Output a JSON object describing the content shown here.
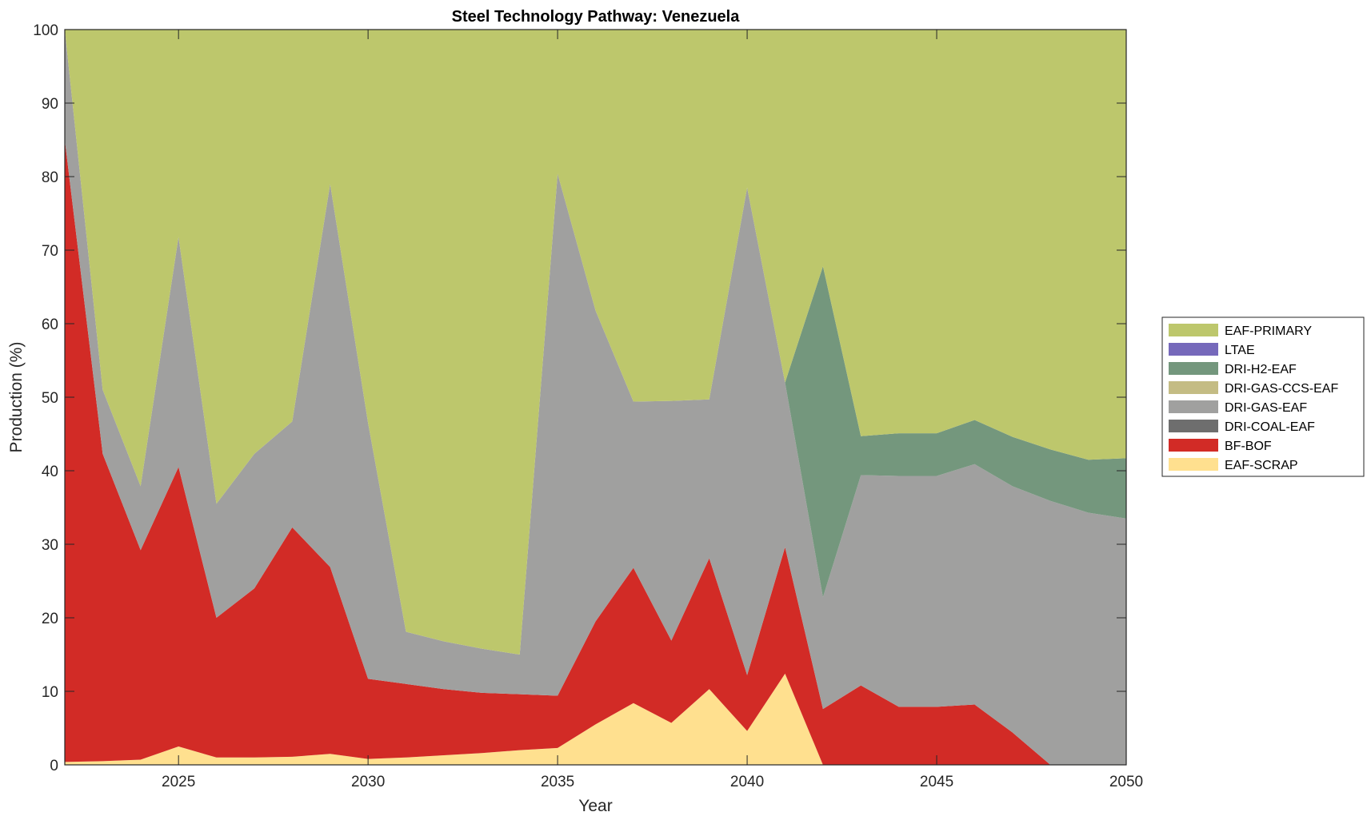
{
  "chart_data": {
    "type": "area",
    "stacked": true,
    "title": "Steel Technology Pathway: Venezuela",
    "xlabel": "Year",
    "ylabel": "Production (%)",
    "xlim": [
      2022,
      2050
    ],
    "ylim": [
      0,
      100
    ],
    "x_ticks": [
      2025,
      2030,
      2035,
      2040,
      2045,
      2050
    ],
    "y_ticks": [
      0,
      10,
      20,
      30,
      40,
      50,
      60,
      70,
      80,
      90,
      100
    ],
    "grid": false,
    "legend_position": "right",
    "legend_order": [
      "EAF-PRIMARY",
      "LTAE",
      "DRI-H2-EAF",
      "DRI-GAS-CCS-EAF",
      "DRI-GAS-EAF",
      "DRI-COAL-EAF",
      "BF-BOF",
      "EAF-SCRAP"
    ],
    "x": [
      2022,
      2023,
      2024,
      2025,
      2026,
      2027,
      2028,
      2029,
      2030,
      2031,
      2032,
      2033,
      2034,
      2035,
      2036,
      2037,
      2038,
      2039,
      2040,
      2041,
      2042,
      2043,
      2044,
      2045,
      2046,
      2047,
      2048,
      2049,
      2050
    ],
    "series": [
      {
        "name": "EAF-SCRAP",
        "color": "#FFE08F",
        "values": [
          0.4,
          0.5,
          0.7,
          2.5,
          1.0,
          1.0,
          1.1,
          1.5,
          0.8,
          1.0,
          1.3,
          1.6,
          2.0,
          2.3,
          5.5,
          8.4,
          5.7,
          10.3,
          4.6,
          12.4,
          0,
          0,
          0,
          0,
          0,
          0,
          0,
          0,
          0
        ]
      },
      {
        "name": "BF-BOF",
        "color": "#D22B26",
        "values": [
          84.6,
          41.8,
          28.5,
          38.0,
          19.0,
          23.0,
          31.2,
          25.4,
          10.9,
          10.0,
          9.0,
          8.2,
          7.6,
          7.1,
          14.0,
          18.4,
          11.2,
          17.8,
          7.6,
          17.2,
          7.6,
          10.8,
          7.9,
          7.9,
          8.2,
          4.4,
          0,
          0,
          0
        ]
      },
      {
        "name": "DRI-COAL-EAF",
        "color": "#6E6E6E",
        "values": [
          0,
          0,
          0,
          0,
          0,
          0,
          0,
          0,
          0,
          0,
          0,
          0,
          0,
          0,
          0,
          0,
          0,
          0,
          0,
          0,
          0,
          0,
          0,
          0,
          0,
          0,
          0,
          0,
          0
        ]
      },
      {
        "name": "DRI-GAS-EAF",
        "color": "#A0A09F",
        "values": [
          15.0,
          8.7,
          8.7,
          31.3,
          15.5,
          18.3,
          14.4,
          52.1,
          34.8,
          7.1,
          6.5,
          6.0,
          5.4,
          71.0,
          42.3,
          22.6,
          32.6,
          21.6,
          66.3,
          22.4,
          15.2,
          28.6,
          31.4,
          31.4,
          32.7,
          33.5,
          35.9,
          34.3,
          33.5
        ]
      },
      {
        "name": "DRI-GAS-CCS-EAF",
        "color": "#C4BC84",
        "values": [
          0,
          0,
          0,
          0,
          0,
          0,
          0,
          0,
          0,
          0,
          0,
          0,
          0,
          0,
          0,
          0,
          0,
          0,
          0,
          0,
          0,
          0,
          0,
          0,
          0,
          0,
          0,
          0,
          0
        ]
      },
      {
        "name": "DRI-H2-EAF",
        "color": "#74977D",
        "values": [
          0,
          0,
          0,
          0,
          0,
          0,
          0,
          0,
          0,
          0,
          0,
          0,
          0,
          0,
          0,
          0,
          0,
          0,
          0,
          0,
          45.0,
          5.3,
          5.8,
          5.8,
          6.0,
          6.7,
          7.0,
          7.2,
          8.2
        ]
      },
      {
        "name": "LTAE",
        "color": "#7669BB",
        "values": [
          0,
          0,
          0,
          0,
          0,
          0,
          0,
          0,
          0,
          0,
          0,
          0,
          0,
          0,
          0,
          0,
          0,
          0,
          0,
          0,
          0,
          0,
          0,
          0,
          0,
          0,
          0,
          0,
          0
        ]
      },
      {
        "name": "EAF-PRIMARY",
        "color": "#BDC76C",
        "values": [
          0,
          49.0,
          62.1,
          28.2,
          64.5,
          57.7,
          53.3,
          21.0,
          53.5,
          81.9,
          83.2,
          84.2,
          85.0,
          19.6,
          38.2,
          50.6,
          50.5,
          50.3,
          21.5,
          48.0,
          32.2,
          55.3,
          54.9,
          54.9,
          53.1,
          55.4,
          57.1,
          58.5,
          58.3
        ]
      }
    ]
  }
}
